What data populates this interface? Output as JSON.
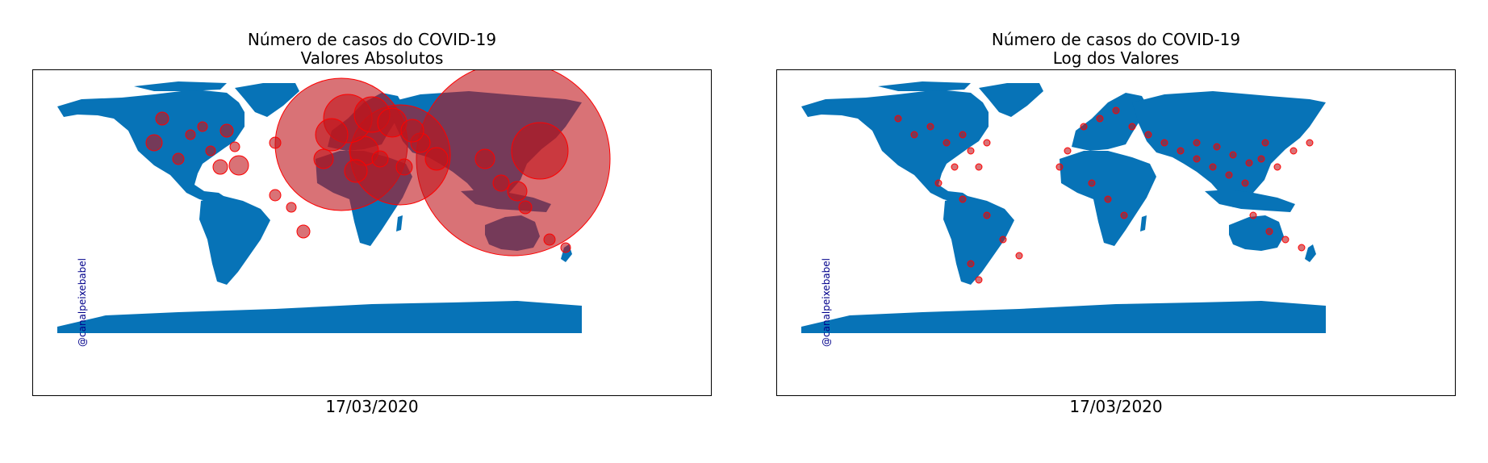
{
  "colors": {
    "land": "#0773b7",
    "marker": "#cc0000",
    "marker_fill": "#c0141a",
    "frame": "#000000",
    "watermark": "#00008b"
  },
  "icons": [
    "world-map"
  ],
  "left_panel": {
    "title_line1": "Número de casos do COVID-19",
    "title_line2": "Valores Absolutos",
    "watermark": "@canalpeixebabel",
    "date": "17/03/2020"
  },
  "right_panel": {
    "title_line1": "Número de casos do COVID-19",
    "title_line2": "Log dos Valores",
    "watermark": "@canalpeixebabel",
    "date": "17/03/2020"
  }
}
